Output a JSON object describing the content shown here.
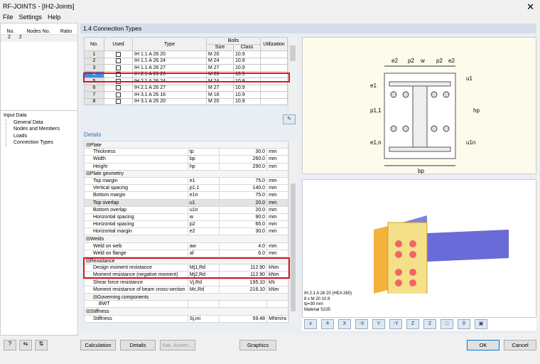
{
  "window": {
    "title": "RF-JOINTS - [IH2-Joints]",
    "close": "✕"
  },
  "menu": [
    "File",
    "Settings",
    "Help"
  ],
  "left": {
    "headers": [
      "No.",
      "Nodes No.",
      "Ratio"
    ],
    "row": [
      "2",
      "2",
      ""
    ],
    "tree": {
      "root": "Input Data",
      "children": [
        "General Data",
        "Nodes and Members",
        "Loads",
        "Connection Types"
      ]
    }
  },
  "section_title": "1.4 Connection Types",
  "types_table": {
    "group_header": "Bolts",
    "headers": [
      "No.",
      "Used",
      "Type",
      "Size",
      "Class",
      "Utilization"
    ],
    "rows": [
      [
        "1",
        false,
        "IH 1.1 A 26 20",
        "M 20",
        "10.9",
        ""
      ],
      [
        "2",
        false,
        "IH 1.1 A 26 24",
        "M 24",
        "10.9",
        ""
      ],
      [
        "3",
        false,
        "IH 1.1 A 26 27",
        "M 27",
        "10.9",
        ""
      ],
      [
        "4",
        true,
        "IH 2.1 A 26 20",
        "M 20",
        "10.9",
        ""
      ],
      [
        "5",
        false,
        "IH 2.1 A 26 24",
        "M 24",
        "10.9",
        ""
      ],
      [
        "6",
        false,
        "IH 2.1 A 26 27",
        "M 27",
        "10.9",
        ""
      ],
      [
        "7",
        false,
        "IH 3.1 A 26 16",
        "M 16",
        "10.9",
        ""
      ],
      [
        "8",
        false,
        "IH 3.1 A 26 20",
        "M 20",
        "10.9",
        ""
      ]
    ],
    "selected": "4"
  },
  "details": {
    "title": "Details",
    "rows": [
      {
        "g": "Plate"
      },
      {
        "n": "Thickness",
        "s": "tp",
        "v": "30.0",
        "u": "mm"
      },
      {
        "n": "Width",
        "s": "bp",
        "v": "260.0",
        "u": "mm"
      },
      {
        "n": "Height",
        "s": "hp",
        "v": "290.0",
        "u": "mm"
      },
      {
        "g": "Plate geometry"
      },
      {
        "n": "Top margin",
        "s": "e1",
        "v": "75.0",
        "u": "mm"
      },
      {
        "n": "Vertical spacing",
        "s": "p1,1",
        "v": "140.0",
        "u": "mm"
      },
      {
        "n": "Bottom margin",
        "s": "e1n",
        "v": "75.0",
        "u": "mm"
      },
      {
        "n": "Top overlap",
        "s": "u1",
        "v": "20.0",
        "u": "mm"
      },
      {
        "n": "Bottom overlap",
        "s": "u1n",
        "v": "20.0",
        "u": "mm"
      },
      {
        "n": "Horizontal spacing",
        "s": "w",
        "v": "90.0",
        "u": "mm"
      },
      {
        "n": "Horizontal spacing",
        "s": "p2",
        "v": "65.0",
        "u": "mm"
      },
      {
        "n": "Horizontal margin",
        "s": "e2",
        "v": "30.0",
        "u": "mm"
      },
      {
        "g": "Welds"
      },
      {
        "n": "Weld on web",
        "s": "aw",
        "v": "4.0",
        "u": "mm"
      },
      {
        "n": "Weld on flange",
        "s": "af",
        "v": "6.0",
        "u": "mm"
      },
      {
        "g": "Resistance"
      },
      {
        "n": "Design moment resistance",
        "s": "Mj1,Rd",
        "v": "112.90",
        "u": "kNm"
      },
      {
        "n": "Moment resistance (negative moment)",
        "s": "Mj2,Rd",
        "v": "112.90",
        "u": "kNm"
      },
      {
        "n": "Shear force resistance",
        "s": "Vj,Rd",
        "v": "195.10",
        "u": "kN"
      },
      {
        "n": "Moment resistance of beam cross-section",
        "s": "Mc,Rd",
        "v": "216.10",
        "u": "kNm"
      },
      {
        "g": "Governing components",
        "sub": true
      },
      {
        "n": "BWT",
        "s": "",
        "v": "",
        "u": ""
      },
      {
        "g": "Stiffness"
      },
      {
        "n": "Stiffness",
        "s": "Sj,ini",
        "v": "59.48",
        "u": "MNm/ra"
      }
    ]
  },
  "diagram": {
    "labels": [
      "e2",
      "p2",
      "w",
      "p2",
      "e2",
      "e1",
      "p1,1",
      "e1,n",
      "u1",
      "hp",
      "u1n",
      "bp"
    ]
  },
  "info": [
    "IH 2.1  A 26 20  (HEA 260)",
    "8 x M 20 10.9",
    "tp=30 mm",
    "Material S235"
  ],
  "buttons": {
    "calculation": "Calculation",
    "details": "Details",
    "nat_annex": "Nat. Annex...",
    "graphics": "Graphics",
    "ok": "OK",
    "cancel": "Cancel"
  }
}
